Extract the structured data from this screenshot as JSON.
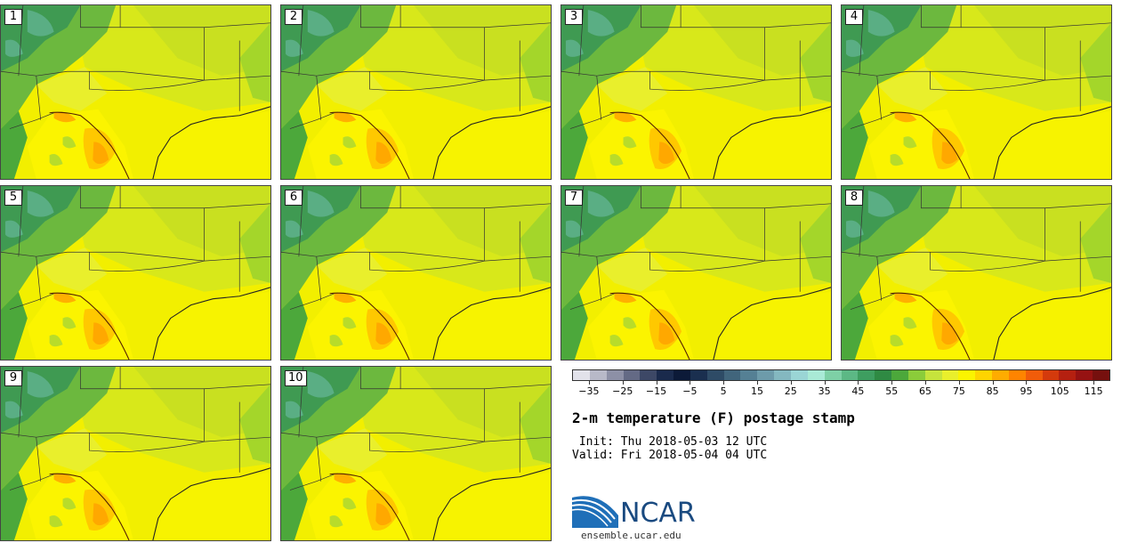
{
  "stamps": [
    {
      "label": "1"
    },
    {
      "label": "2"
    },
    {
      "label": "3"
    },
    {
      "label": "4"
    },
    {
      "label": "5"
    },
    {
      "label": "6"
    },
    {
      "label": "7"
    },
    {
      "label": "8"
    },
    {
      "label": "9"
    },
    {
      "label": "10"
    }
  ],
  "colorbar": {
    "colors": [
      "#e2e2ea",
      "#b8b9c8",
      "#8d90a6",
      "#646a85",
      "#3d4866",
      "#1a2a4c",
      "#0c1a38",
      "#1a2f4f",
      "#2e4b66",
      "#41657c",
      "#558094",
      "#6d9baa",
      "#84b8c0",
      "#9ad5d5",
      "#a9ead6",
      "#7ed0a6",
      "#5cb885",
      "#3e9e60",
      "#2f8a43",
      "#4ca83b",
      "#8bcc3a",
      "#c6e33c",
      "#e9ef2c",
      "#fbf400",
      "#ffd400",
      "#ffac00",
      "#ff8400",
      "#f15c0a",
      "#d43a0c",
      "#b52010",
      "#961212",
      "#76100e"
    ],
    "ticks": [
      "-35",
      "-25",
      "-15",
      "-5",
      "5",
      "15",
      "25",
      "35",
      "45",
      "55",
      "65",
      "75",
      "85",
      "95",
      "105",
      "115"
    ]
  },
  "title": "2-m temperature (F) postage stamp",
  "init": " Init: Thu 2018-05-03 12 UTC",
  "valid": "Valid: Fri 2018-05-04 04 UTC",
  "logo": {
    "text": "NCAR",
    "color": "#1a4a80",
    "accent": "#1f6fb8"
  },
  "site": "ensemble.ucar.edu"
}
